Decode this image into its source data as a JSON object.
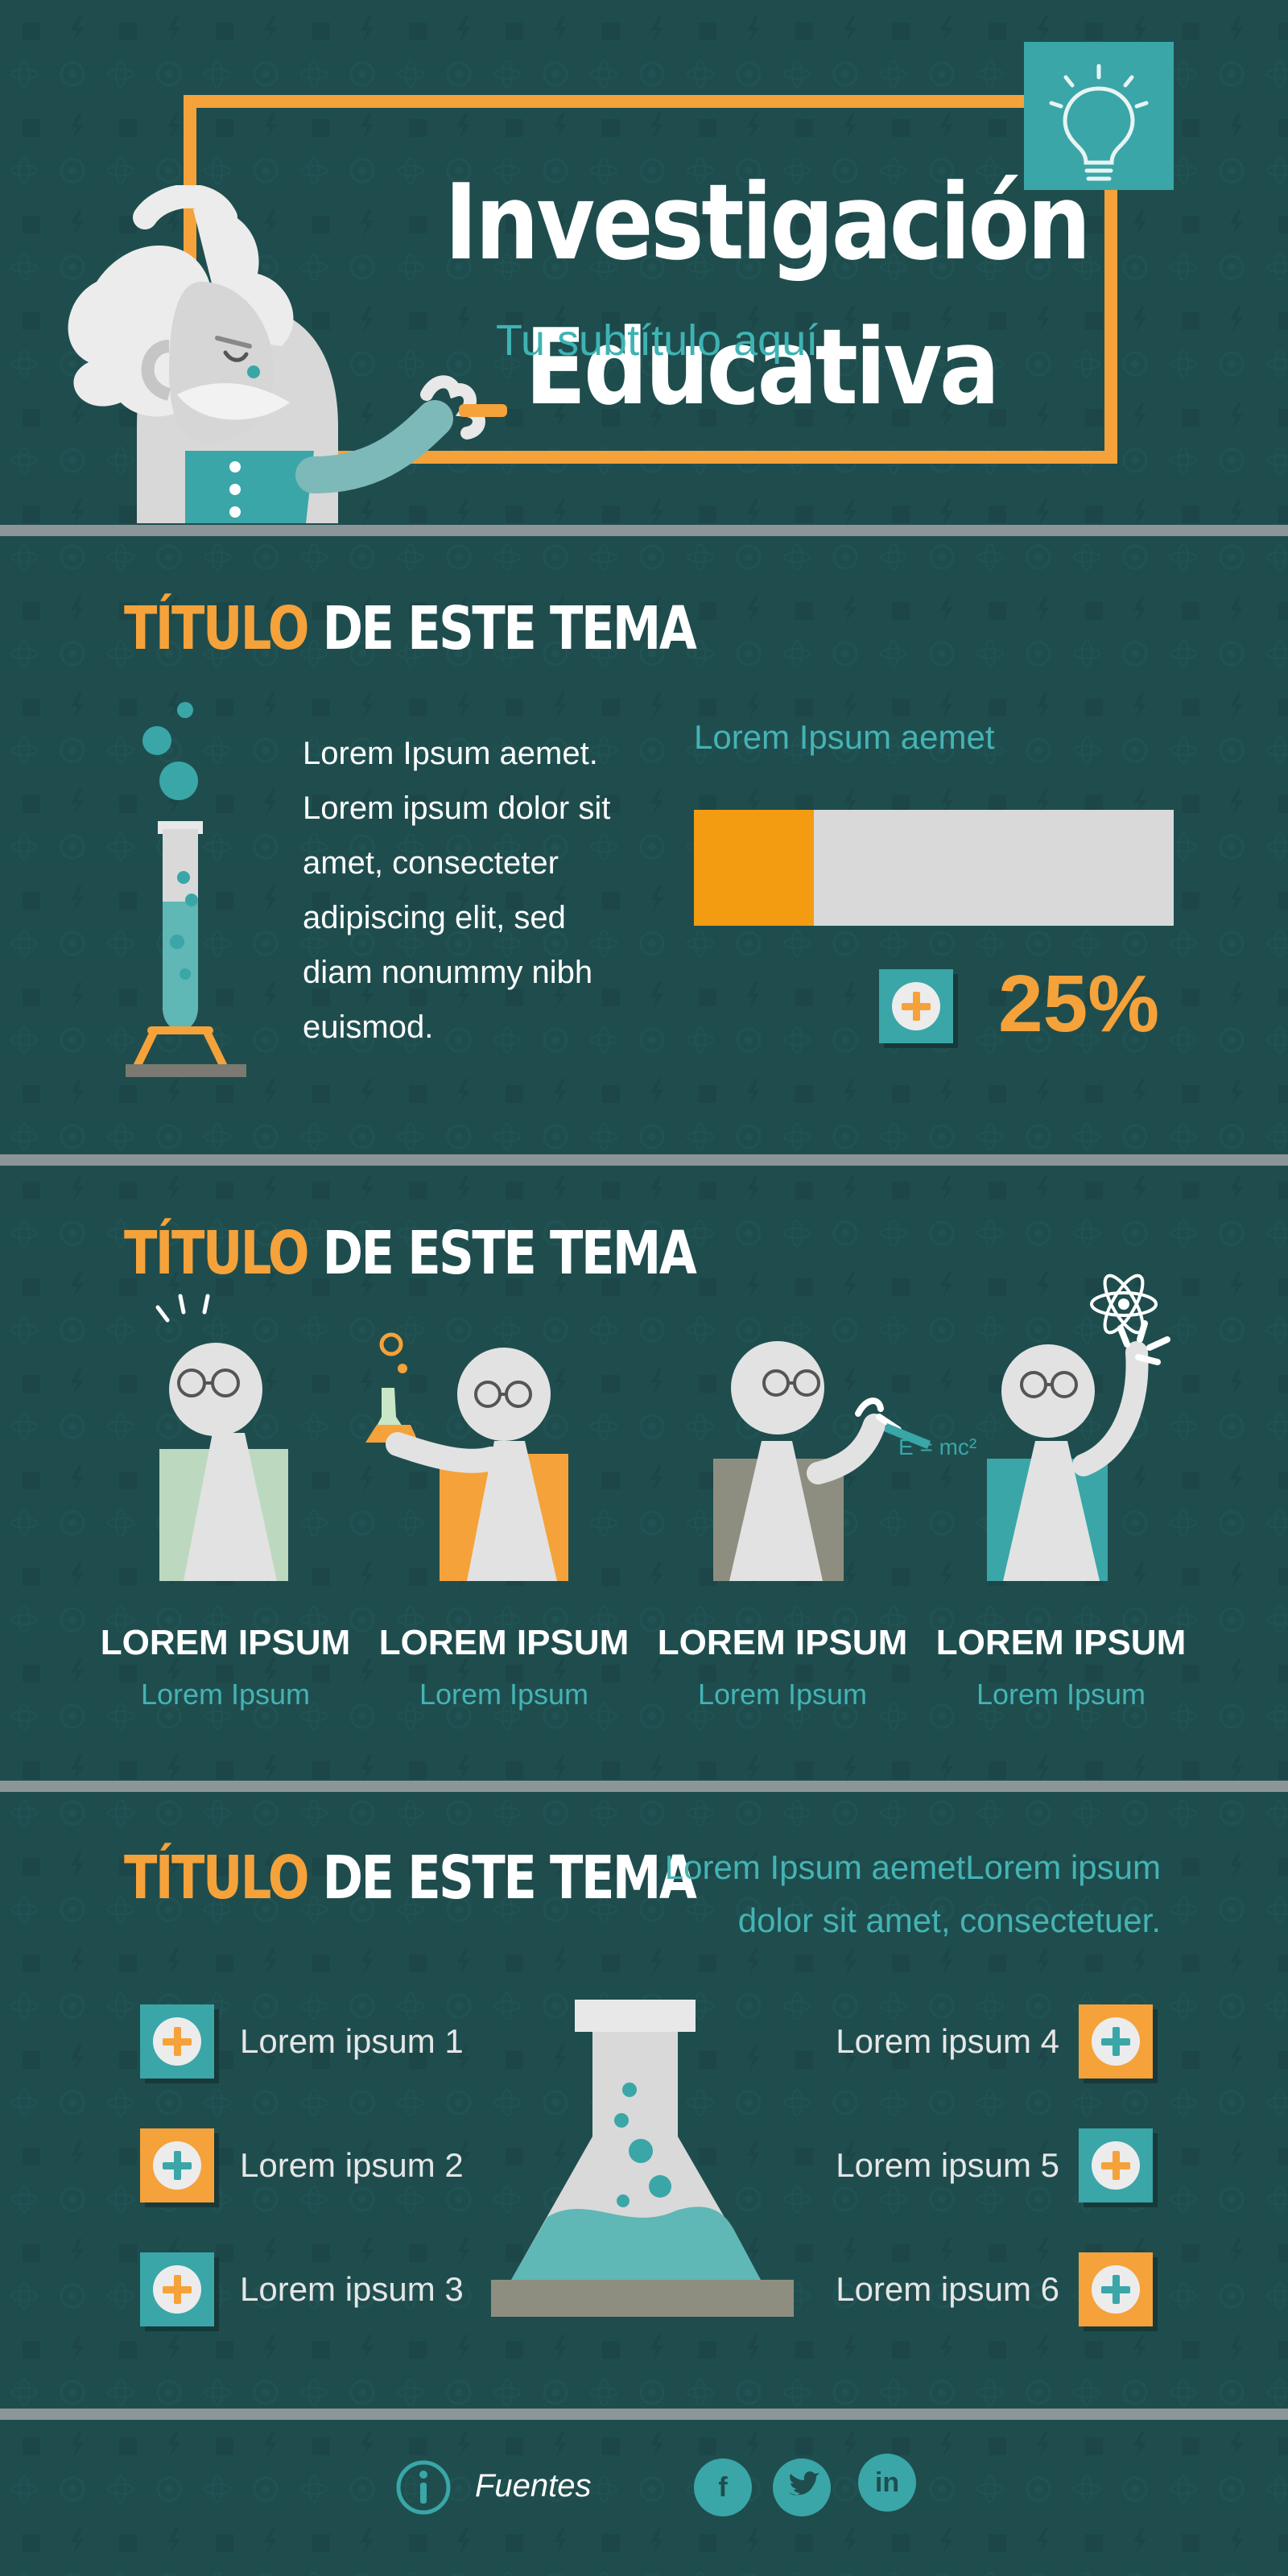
{
  "header": {
    "title_line1": "Investigación",
    "title_line2": "Educativa",
    "subtitle": "Tu subtítulo aquí"
  },
  "section1": {
    "title_highlight": "TÍTULO",
    "title_rest": " DE ESTE TEMA",
    "body": "Lorem Ipsum aemet. Lorem ipsum dolor sit amet, consecteter adipiscing elit, sed diam nonummy nibh euismod.",
    "progress_label": "Lorem Ipsum aemet",
    "progress_value": 0.25,
    "progress_text": "25%"
  },
  "section2": {
    "title_highlight": "TÍTULO",
    "title_rest": " DE ESTE TEMA",
    "people": [
      {
        "label": "LOREM IPSUM",
        "sub": "Lorem Ipsum"
      },
      {
        "label": "LOREM IPSUM",
        "sub": "Lorem Ipsum"
      },
      {
        "label": "LOREM IPSUM",
        "sub": "Lorem Ipsum"
      },
      {
        "label": "LOREM IPSUM",
        "sub": "Lorem Ipsum"
      }
    ],
    "formula": "E = mc²"
  },
  "section3": {
    "title_highlight": "TÍTULO",
    "title_rest": " DE ESTE TEMA",
    "description_line1": "Lorem Ipsum aemetLorem ipsum",
    "description_line2": "dolor sit amet, consectetuer.",
    "items": [
      "Lorem ipsum 1",
      "Lorem ipsum 2",
      "Lorem ipsum 3",
      "Lorem ipsum 4",
      "Lorem ipsum 5",
      "Lorem ipsum 6"
    ]
  },
  "footer": {
    "sources": "Fuentes",
    "social": [
      "f",
      "t",
      "in"
    ]
  },
  "colors": {
    "background": "#1f4d4e",
    "accent_orange": "#f5a23a",
    "accent_teal": "#3aa6a8",
    "divider": "#8c9698"
  }
}
